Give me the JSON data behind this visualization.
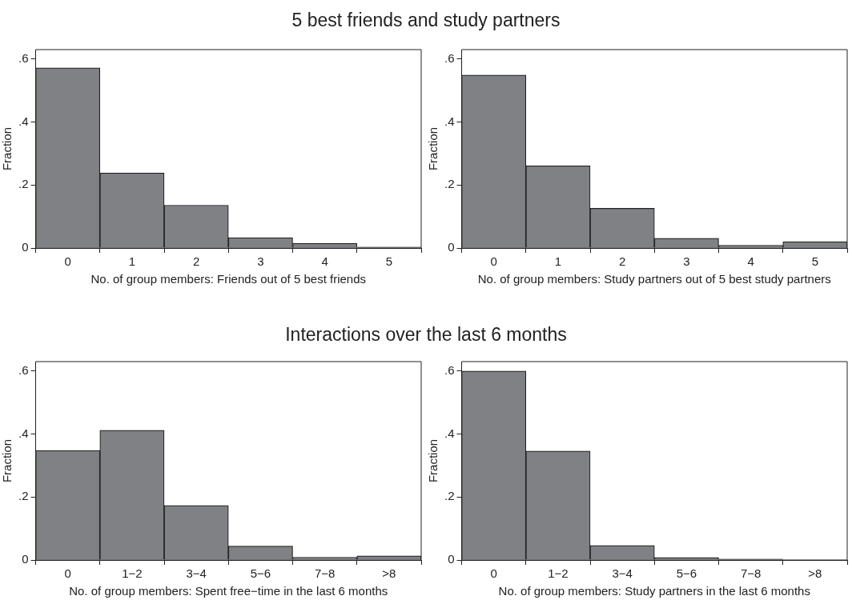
{
  "chart_data": [
    {
      "type": "bar",
      "title": "5 best friends and study partners",
      "xlabel": "No. of group members: Friends out of 5 best friends",
      "ylabel": "Fraction",
      "categories": [
        "0",
        "1",
        "2",
        "3",
        "4",
        "5"
      ],
      "values": [
        0.572,
        0.238,
        0.136,
        0.033,
        0.015,
        0.003
      ],
      "color": "#808185",
      "ylim": [
        0,
        0.63
      ],
      "yticks": [
        {
          "value": 0,
          "label": "0"
        },
        {
          "value": 0.2,
          "label": ".2"
        },
        {
          "value": 0.4,
          "label": ".4"
        },
        {
          "value": 0.6,
          "label": ".6"
        }
      ],
      "grid": false
    },
    {
      "type": "bar",
      "xlabel": "No. of group members: Study partners out of 5 best study partners",
      "ylabel": "Fraction",
      "categories": [
        "0",
        "1",
        "2",
        "3",
        "4",
        "5"
      ],
      "values": [
        0.549,
        0.261,
        0.126,
        0.031,
        0.009,
        0.02
      ],
      "color": "#808185",
      "ylim": [
        0,
        0.63
      ],
      "yticks": [
        {
          "value": 0,
          "label": "0"
        },
        {
          "value": 0.2,
          "label": ".2"
        },
        {
          "value": 0.4,
          "label": ".4"
        },
        {
          "value": 0.6,
          "label": ".6"
        }
      ],
      "grid": false
    },
    {
      "type": "bar",
      "title": "Interactions over the last 6 months",
      "xlabel": "No. of group members: Spent free−time in the last 6 months",
      "ylabel": "Fraction",
      "categories": [
        "0",
        "1−2",
        "3−4",
        "5−6",
        "7−8",
        ">8"
      ],
      "values": [
        0.348,
        0.412,
        0.173,
        0.044,
        0.009,
        0.013
      ],
      "color": "#808185",
      "ylim": [
        0,
        0.63
      ],
      "yticks": [
        {
          "value": 0,
          "label": "0"
        },
        {
          "value": 0.2,
          "label": ".2"
        },
        {
          "value": 0.4,
          "label": ".4"
        },
        {
          "value": 0.6,
          "label": ".6"
        }
      ],
      "grid": false
    },
    {
      "type": "bar",
      "xlabel": "No. of group members: Study partners in the last 6 months",
      "ylabel": "Fraction",
      "categories": [
        "0",
        "1−2",
        "3−4",
        "5−6",
        "7−8",
        ">8"
      ],
      "values": [
        0.6,
        0.346,
        0.046,
        0.008,
        0.003,
        0
      ],
      "color": "#808185",
      "ylim": [
        0,
        0.63
      ],
      "yticks": [
        {
          "value": 0,
          "label": "0"
        },
        {
          "value": 0.2,
          "label": ".2"
        },
        {
          "value": 0.4,
          "label": ".4"
        },
        {
          "value": 0.6,
          "label": ".6"
        }
      ],
      "grid": false
    }
  ]
}
